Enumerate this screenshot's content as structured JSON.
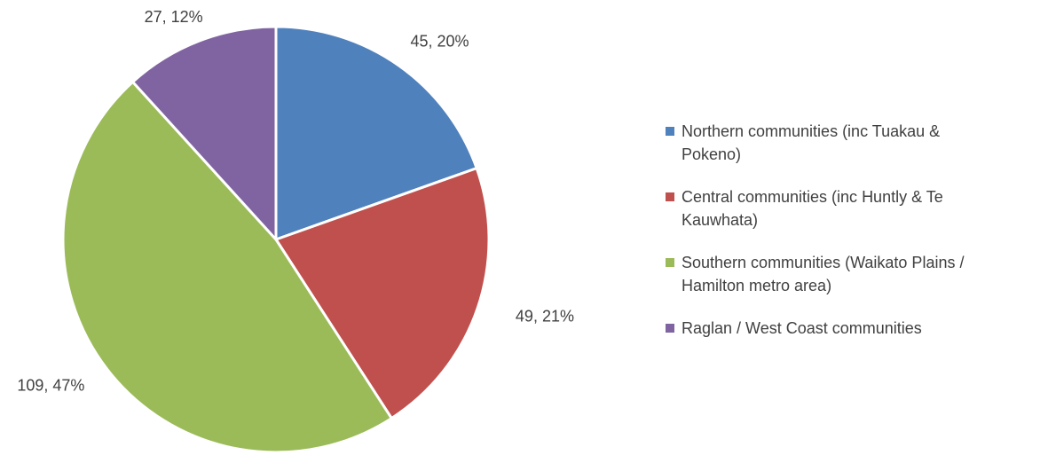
{
  "chart_data": {
    "type": "pie",
    "categories": [
      "Northern communities (inc Tuakau & Pokeno)",
      "Central communities (inc Huntly & Te Kauwhata)",
      "Southern communities (Waikato Plains / Hamilton metro area)",
      "Raglan / West Coast communities"
    ],
    "values": [
      45,
      49,
      109,
      27
    ],
    "value_labels": [
      "45, 20%",
      "49, 21%",
      "109, 47%",
      "27, 12%"
    ],
    "colors": [
      "#4f81bd",
      "#c0504d",
      "#9bbb59",
      "#8064a2"
    ],
    "legend": "right"
  }
}
